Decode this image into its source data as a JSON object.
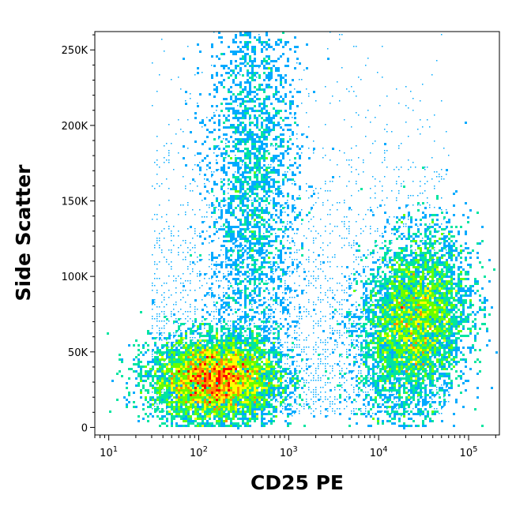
{
  "chart_data": {
    "type": "scatter",
    "plot_style": "flow-cytometry-density-dot-plot",
    "xlabel": "CD25 PE",
    "ylabel": "Side Scatter",
    "x_scale": "log",
    "xlim": [
      7,
      220000
    ],
    "ylim": [
      -5000,
      262144
    ],
    "x_ticks": [
      {
        "value": 10,
        "base": "10",
        "exp": "1"
      },
      {
        "value": 100,
        "base": "10",
        "exp": "2"
      },
      {
        "value": 1000,
        "base": "10",
        "exp": "3"
      },
      {
        "value": 10000,
        "base": "10",
        "exp": "4"
      },
      {
        "value": 100000,
        "base": "10",
        "exp": "5"
      }
    ],
    "y_ticks": [
      {
        "value": 0,
        "label": "0"
      },
      {
        "value": 50000,
        "label": "50K"
      },
      {
        "value": 100000,
        "label": "100K"
      },
      {
        "value": 150000,
        "label": "150K"
      },
      {
        "value": 200000,
        "label": "200K"
      },
      {
        "value": 250000,
        "label": "250K"
      }
    ],
    "density_colors": [
      "#0000ff",
      "#00aaff",
      "#00e5a0",
      "#66ff00",
      "#ffff00",
      "#ff8c00",
      "#ff0000"
    ],
    "populations": [
      {
        "name_hint": "CD25-negative",
        "center_x": 150,
        "center_y": 32000,
        "spread_log_x": 0.35,
        "spread_y": 14000,
        "peak_density": "high"
      },
      {
        "name_hint": "CD25-positive",
        "center_x": 25000,
        "center_y": 70000,
        "spread_log_x": 0.3,
        "spread_y": 28000,
        "peak_density": "medium"
      },
      {
        "name_hint": "high-side-scatter streak",
        "center_x": 400,
        "center_y": 160000,
        "spread_log_x": 0.25,
        "spread_y": 70000,
        "peak_density": "low"
      }
    ],
    "grid": false,
    "legend": "none"
  }
}
